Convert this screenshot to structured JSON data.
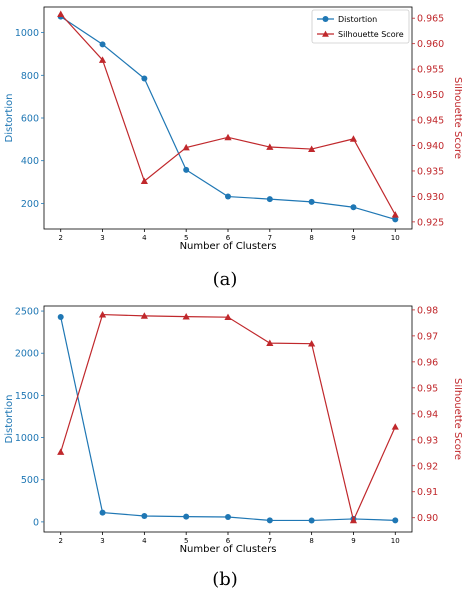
{
  "colors": {
    "distortion": "#1f77b4",
    "silhouette": "#c0282c"
  },
  "chart_data": [
    {
      "type": "line",
      "caption": "(a)",
      "xlabel": "Number of Clusters",
      "ylabel_left": "Distortion",
      "ylabel_right": "Silhouette Score",
      "x": [
        2,
        3,
        4,
        5,
        6,
        7,
        8,
        9,
        10
      ],
      "xlim": [
        1.6,
        10.4
      ],
      "ylim_left": [
        80,
        1120
      ],
      "yticks_left": [
        200,
        400,
        600,
        800,
        1000
      ],
      "ylim_right": [
        0.9236,
        0.9672
      ],
      "yticks_right": [
        0.925,
        0.93,
        0.935,
        0.94,
        0.945,
        0.95,
        0.955,
        0.96,
        0.965
      ],
      "yticks_right_labels": [
        "0.925",
        "0.930",
        "0.935",
        "0.940",
        "0.945",
        "0.950",
        "0.955",
        "0.960",
        "0.965"
      ],
      "legend_position": "top-right",
      "series": [
        {
          "name": "Distortion",
          "axis": "left",
          "marker": "circle",
          "values": [
            1075,
            945,
            785,
            357,
            232,
            220,
            207,
            182,
            125
          ]
        },
        {
          "name": "Silhouette Score",
          "axis": "right",
          "marker": "triangle",
          "values": [
            0.9658,
            0.9568,
            0.933,
            0.9396,
            0.9416,
            0.9397,
            0.9393,
            0.9413,
            0.9264
          ]
        }
      ]
    },
    {
      "type": "line",
      "caption": "(b)",
      "xlabel": "Number of Clusters",
      "ylabel_left": "Distortion",
      "ylabel_right": "Silhouette Score",
      "x": [
        2,
        3,
        4,
        5,
        6,
        7,
        8,
        9,
        10
      ],
      "xlim": [
        1.6,
        10.4
      ],
      "ylim_left": [
        -120,
        2560
      ],
      "yticks_left": [
        0,
        500,
        1000,
        1500,
        2000,
        2500
      ],
      "ylim_right": [
        0.8945,
        0.9815
      ],
      "yticks_right": [
        0.9,
        0.91,
        0.92,
        0.93,
        0.94,
        0.95,
        0.96,
        0.97,
        0.98
      ],
      "yticks_right_labels": [
        "0.90",
        "0.91",
        "0.92",
        "0.93",
        "0.94",
        "0.95",
        "0.96",
        "0.97",
        "0.98"
      ],
      "legend_position": "none",
      "series": [
        {
          "name": "Distortion",
          "axis": "left",
          "marker": "circle",
          "values": [
            2430,
            110,
            70,
            62,
            58,
            18,
            17,
            35,
            18
          ]
        },
        {
          "name": "Silhouette Score",
          "axis": "right",
          "marker": "triangle",
          "values": [
            0.9253,
            0.9782,
            0.9777,
            0.9774,
            0.9772,
            0.9672,
            0.967,
            0.899,
            0.935
          ]
        }
      ]
    }
  ]
}
